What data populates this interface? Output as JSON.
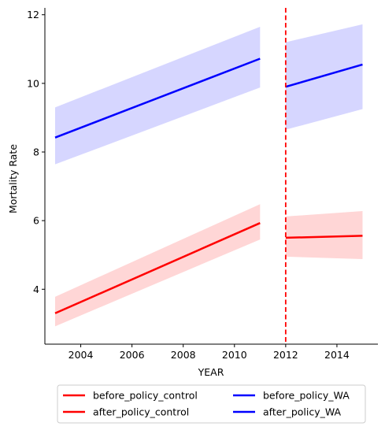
{
  "chart_data": {
    "type": "line",
    "title": "",
    "xlabel": "YEAR",
    "ylabel": "Mortality Rate",
    "xlim": [
      2002.6,
      2015.6
    ],
    "ylim": [
      2.4,
      12.2
    ],
    "xticks": [
      2004,
      2006,
      2008,
      2010,
      2012,
      2014
    ],
    "yticks": [
      4,
      6,
      8,
      10,
      12
    ],
    "grid": false,
    "legend_placement": "bottom-center",
    "policy_line": {
      "x": 2012,
      "color": "#ff0000",
      "style": "dashed"
    },
    "series": [
      {
        "name": "before_policy_control",
        "color": "#ff0000",
        "band_color": "#ffd6d6",
        "x": [
          2003,
          2011
        ],
        "y": [
          3.3,
          5.93
        ],
        "ci_lower": [
          2.92,
          5.45
        ],
        "ci_upper": [
          3.78,
          6.48
        ]
      },
      {
        "name": "after_policy_control",
        "color": "#ff0000",
        "band_color": "#ffd6d6",
        "x": [
          2012,
          2015
        ],
        "y": [
          5.5,
          5.56
        ],
        "ci_lower": [
          4.95,
          4.88
        ],
        "ci_upper": [
          6.12,
          6.28
        ]
      },
      {
        "name": "before_policy_WA",
        "color": "#0000ff",
        "band_color": "#d6d6ff",
        "x": [
          2003,
          2011
        ],
        "y": [
          8.42,
          10.72
        ],
        "ci_lower": [
          7.64,
          9.88
        ],
        "ci_upper": [
          9.3,
          11.65
        ]
      },
      {
        "name": "after_policy_WA",
        "color": "#0000ff",
        "band_color": "#d6d6ff",
        "x": [
          2012,
          2015
        ],
        "y": [
          9.9,
          10.55
        ],
        "ci_lower": [
          8.65,
          9.25
        ],
        "ci_upper": [
          11.2,
          11.72
        ]
      }
    ]
  }
}
